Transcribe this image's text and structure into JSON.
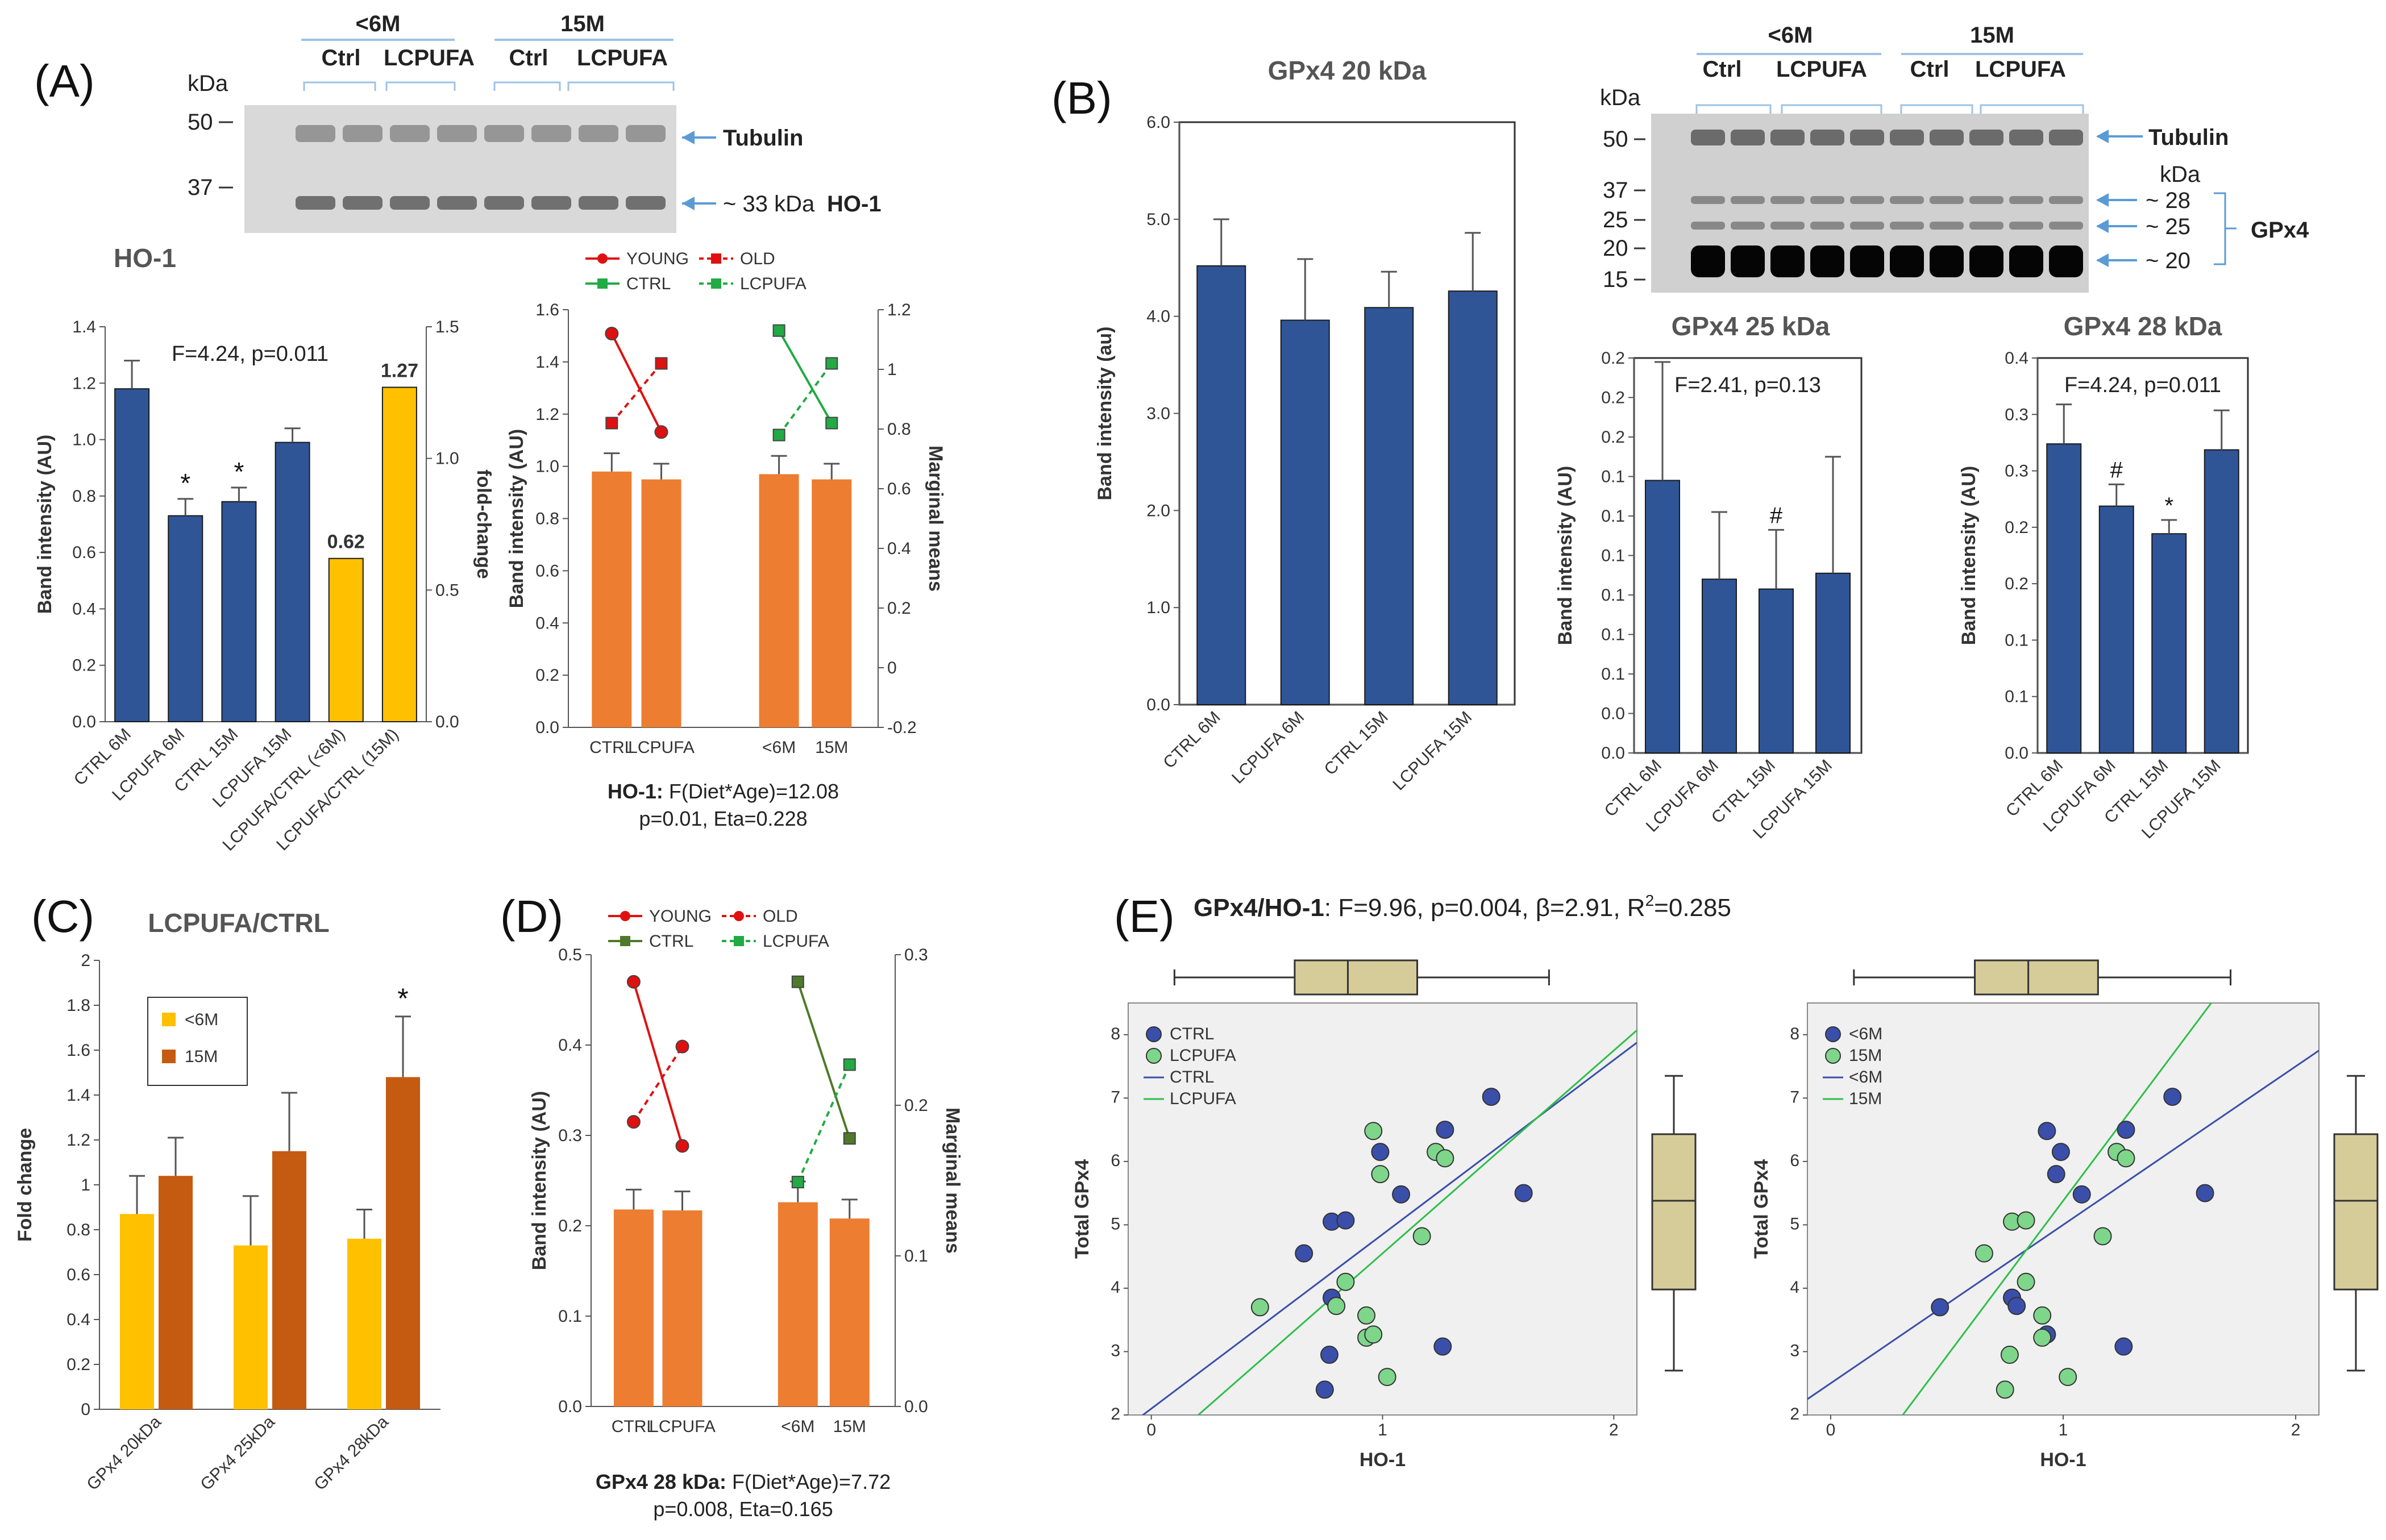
{
  "panels": {
    "A": {
      "label": "(A)",
      "blot": {
        "groups": [
          "<6M",
          "15M"
        ],
        "conds": [
          "Ctrl",
          "LCPUFA",
          "Ctrl",
          "LCPUFA"
        ],
        "unit": "kDa",
        "markers": [
          "50",
          "37"
        ],
        "bands": [
          "Tubulin",
          "~ 33 kDa",
          "HO-1"
        ]
      }
    },
    "B": {
      "label": "(B)",
      "blot": {
        "groups": [
          "<6M",
          "15M"
        ],
        "conds": [
          "Ctrl",
          "LCPUFA",
          "Ctrl",
          "LCPUFA"
        ],
        "unit": "kDa",
        "markers": [
          "50",
          "37",
          "25",
          "20",
          "15"
        ],
        "bands": [
          "Tubulin",
          "kDa",
          "~ 28",
          "~ 25",
          "~ 20",
          "GPx4"
        ]
      }
    },
    "C": {
      "label": "(C)"
    },
    "D": {
      "label": "(D)"
    },
    "E": {
      "label": "(E)",
      "header_bold": "GPx4/HO-1",
      "header_rest": ": F=9.96, p=0.004, β=2.91, R",
      "header_sup": "2",
      "header_end": "=0.285"
    }
  },
  "chart_data": [
    {
      "id": "A_bar",
      "type": "bar",
      "title": "HO-1",
      "categories": [
        "CTRL 6M",
        "LCPUFA 6M",
        "CTRL 15M",
        "LCPUFA 15M",
        "LCPUFA/CTRL (<6M)",
        "LCPUFA/CTRL (15M)"
      ],
      "values": [
        1.18,
        0.73,
        0.78,
        0.99,
        0.62,
        1.27
      ],
      "errors": [
        0.1,
        0.06,
        0.05,
        0.05,
        null,
        null
      ],
      "axis": [
        "left",
        "left",
        "left",
        "left",
        "right",
        "right"
      ],
      "colors": [
        "#2F5597",
        "#2F5597",
        "#2F5597",
        "#2F5597",
        "#FFC000",
        "#FFC000"
      ],
      "sig": [
        "",
        "*",
        "*",
        "",
        "",
        ""
      ],
      "value_labels": [
        "",
        "",
        "",
        "",
        "0.62",
        "1.27"
      ],
      "annotation": "F=4.24, p=0.011",
      "ylabel": "Band intensity (AU)",
      "y2label": "fold-change",
      "ylim": [
        0,
        1.4
      ],
      "yticks": [
        "0.0",
        "0.2",
        "0.4",
        "0.6",
        "0.8",
        "1.0",
        "1.2",
        "1.4"
      ],
      "y2lim": [
        0,
        1.5
      ],
      "y2ticks": [
        "0.0",
        "0.5",
        "1.0",
        "1.5"
      ]
    },
    {
      "id": "A_interaction",
      "type": "bar",
      "categories": [
        "CTRL",
        "LCPUFA",
        "<6M",
        "15M"
      ],
      "values": [
        0.98,
        0.95,
        0.97,
        0.95
      ],
      "errors": [
        0.07,
        0.06,
        0.07,
        0.06
      ],
      "ylabel": "Band intensity (AU)",
      "y2label": "Marginal means",
      "ylim": [
        0,
        1.6
      ],
      "yticks": [
        "0.0",
        "0.2",
        "0.4",
        "0.6",
        "0.8",
        "1.0",
        "1.2",
        "1.4",
        "1.6"
      ],
      "y2lim": [
        -0.2,
        1.2
      ],
      "y2ticks": [
        "-0.2",
        "0",
        "0.2",
        "0.4",
        "0.6",
        "0.8",
        "1",
        "1.2"
      ],
      "legend": [
        "YOUNG",
        "OLD",
        "CTRL",
        "LCPUFA"
      ],
      "lines": [
        {
          "name": "YOUNG",
          "color": "#E01010",
          "dash": false,
          "marker": "circle",
          "values": [
            1.12,
            0.79
          ]
        },
        {
          "name": "OLD",
          "color": "#E01010",
          "dash": true,
          "marker": "square",
          "values": [
            0.82,
            1.02
          ]
        },
        {
          "name": "CTRL",
          "color": "#22AA44",
          "dash": false,
          "marker": "square",
          "values": [
            1.13,
            0.82
          ]
        },
        {
          "name": "LCPUFA",
          "color": "#22AA44",
          "dash": true,
          "marker": "square",
          "values": [
            0.78,
            1.02
          ]
        }
      ],
      "caption_bold": "HO-1:",
      "caption_rest": " F(Diet*Age)=12.08",
      "caption_line2": "p=0.01,  Eta=0.228"
    },
    {
      "id": "B_20",
      "type": "bar",
      "title": "GPx4 20 kDa",
      "categories": [
        "CTRL 6M",
        "LCPUFA 6M",
        "CTRL 15M",
        "LCPUFA 15M"
      ],
      "values": [
        4.52,
        3.96,
        4.09,
        4.26
      ],
      "errors": [
        0.48,
        0.63,
        0.37,
        0.6
      ],
      "ylabel": "Band intensity (au)",
      "ylim": [
        0,
        6
      ],
      "yticks": [
        "0.0",
        "1.0",
        "2.0",
        "3.0",
        "4.0",
        "5.0",
        "6.0"
      ]
    },
    {
      "id": "B_25",
      "type": "bar",
      "title": "GPx4 25 kDa",
      "categories": [
        "CTRL 6M",
        "LCPUFA 6M",
        "CTRL 15M",
        "LCPUFA 15M"
      ],
      "values": [
        0.138,
        0.088,
        0.083,
        0.091
      ],
      "errors": [
        0.06,
        0.034,
        0.03,
        0.059
      ],
      "sig": [
        "",
        "",
        "#",
        ""
      ],
      "annotation": "F=2.41, p=0.13",
      "ylabel": "Band intensity (AU)",
      "ylim": [
        0,
        0.2
      ],
      "yticks": [
        "0.0",
        "0.0",
        "0.1",
        "0.1",
        "0.1",
        "0.1",
        "0.1",
        "0.1",
        "0.2",
        "0.2",
        "0.2"
      ]
    },
    {
      "id": "B_28",
      "type": "bar",
      "title": "GPx4 28 kDa",
      "categories": [
        "CTRL 6M",
        "LCPUFA 6M",
        "CTRL 15M",
        "LCPUFA 15M"
      ],
      "values": [
        0.313,
        0.25,
        0.222,
        0.307
      ],
      "errors": [
        0.04,
        0.022,
        0.014,
        0.04
      ],
      "sig": [
        "",
        "#",
        "*",
        ""
      ],
      "annotation": "F=4.24, p=0.011",
      "ylabel": "Band intensity (AU)",
      "ylim": [
        0,
        0.4
      ],
      "yticks": [
        "0.0",
        "0.1",
        "0.1",
        "0.2",
        "0.2",
        "0.3",
        "0.3",
        "0.4"
      ]
    },
    {
      "id": "C",
      "type": "bar",
      "title": "LCPUFA/CTRL",
      "categories": [
        "GPx4 20kDa",
        "GPx4 25kDa",
        "GPx4 28kDa"
      ],
      "series": [
        {
          "name": "<6M",
          "color": "#FFC000",
          "values": [
            0.87,
            0.73,
            0.76
          ],
          "errors": [
            0.17,
            0.22,
            0.13
          ]
        },
        {
          "name": "15M",
          "color": "#C55A11",
          "values": [
            1.04,
            1.15,
            1.48
          ],
          "errors": [
            0.17,
            0.26,
            0.27
          ]
        }
      ],
      "sig": [
        "",
        "",
        "*"
      ],
      "ylabel": "Fold change",
      "ylim": [
        0,
        2
      ],
      "yticks": [
        "0",
        "0.2",
        "0.4",
        "0.6",
        "0.8",
        "1",
        "1.2",
        "1.4",
        "1.6",
        "1.8",
        "2"
      ]
    },
    {
      "id": "D",
      "type": "bar",
      "categories": [
        "CTRL",
        "LCPUFA",
        "<6M",
        "15M"
      ],
      "values": [
        0.218,
        0.217,
        0.226,
        0.208
      ],
      "errors": [
        0.022,
        0.021,
        0.023,
        0.021
      ],
      "ylabel": "Band intensity (AU)",
      "y2label": "Marginal means",
      "ylim": [
        0,
        0.5
      ],
      "yticks": [
        "0.0",
        "0.1",
        "0.2",
        "0.3",
        "0.4",
        "0.5"
      ],
      "y2lim": [
        0,
        0.3
      ],
      "y2ticks": [
        "0.0",
        "0.1",
        "0.2",
        "0.3"
      ],
      "legend": [
        "YOUNG",
        "OLD",
        "CTRL",
        "LCPUFA"
      ],
      "lines": [
        {
          "name": "YOUNG",
          "color": "#E01010",
          "dash": false,
          "marker": "circle",
          "values": [
            0.282,
            0.173
          ]
        },
        {
          "name": "OLD",
          "color": "#E01010",
          "dash": true,
          "marker": "circle",
          "values": [
            0.189,
            0.239
          ]
        },
        {
          "name": "CTRL",
          "color": "#4E7A2A",
          "dash": false,
          "marker": "square",
          "values": [
            0.282,
            0.178
          ]
        },
        {
          "name": "LCPUFA",
          "color": "#22AA44",
          "dash": true,
          "marker": "square",
          "values": [
            0.149,
            0.227
          ]
        }
      ],
      "caption_bold": "GPx4 28 kDa:",
      "caption_rest": " F(Diet*Age)=7.72",
      "caption_line2": "p=0.008, Eta=0.165"
    },
    {
      "id": "E1",
      "type": "scatter",
      "xlabel": "HO-1",
      "ylabel": "Total GPx4",
      "xlim": [
        -0.1,
        2.1
      ],
      "ylim": [
        2,
        8.5
      ],
      "xticks": [
        "0",
        "1",
        "2"
      ],
      "yticks": [
        "2",
        "3",
        "4",
        "5",
        "6",
        "7",
        "8"
      ],
      "legend": [
        "CTRL",
        "LCPUFA",
        "CTRL",
        "LCPUFA"
      ],
      "series": [
        {
          "name": "CTRL",
          "color": "#3A4FAA",
          "points": [
            [
              0.66,
              4.55
            ],
            [
              0.78,
              5.05
            ],
            [
              0.84,
              5.07
            ],
            [
              0.99,
              6.15
            ],
            [
              1.08,
              5.48
            ],
            [
              1.27,
              6.5
            ],
            [
              1.47,
              7.02
            ],
            [
              1.61,
              5.5
            ],
            [
              0.78,
              3.85
            ],
            [
              0.77,
              2.95
            ],
            [
              0.75,
              2.4
            ],
            [
              1.26,
              3.08
            ]
          ]
        },
        {
          "name": "LCPUFA",
          "color": "#7ED68A",
          "points": [
            [
              0.47,
              3.7
            ],
            [
              0.8,
              3.72
            ],
            [
              0.84,
              4.1
            ],
            [
              0.93,
              3.57
            ],
            [
              0.93,
              3.22
            ],
            [
              0.96,
              3.27
            ],
            [
              0.96,
              6.48
            ],
            [
              0.99,
              5.8
            ],
            [
              1.02,
              2.6
            ],
            [
              1.17,
              4.82
            ],
            [
              1.23,
              6.15
            ],
            [
              1.27,
              6.05
            ]
          ]
        }
      ],
      "fits": [
        {
          "name": "CTRL",
          "color": "#3A4FAA",
          "intercept": 2.1,
          "slope": 2.75
        },
        {
          "name": "LCPUFA",
          "color": "#2EBF4A",
          "intercept": 1.35,
          "slope": 3.2
        }
      ],
      "box_x": {
        "min": 0.1,
        "q1": 0.62,
        "median": 0.85,
        "q3": 1.15,
        "max": 1.72
      },
      "box_y": {
        "min": 2.7,
        "q1": 3.98,
        "median": 5.38,
        "q3": 6.43,
        "max": 7.35
      }
    },
    {
      "id": "E2",
      "type": "scatter",
      "xlabel": "HO-1",
      "ylabel": "Total GPx4",
      "xlim": [
        -0.1,
        2.1
      ],
      "ylim": [
        2,
        8.5
      ],
      "xticks": [
        "0",
        "1",
        "2"
      ],
      "yticks": [
        "2",
        "3",
        "4",
        "5",
        "6",
        "7",
        "8"
      ],
      "legend": [
        "<6M",
        "15M",
        "<6M",
        "15M"
      ],
      "series": [
        {
          "name": "<6M",
          "color": "#3A4FAA",
          "points": [
            [
              0.47,
              3.7
            ],
            [
              0.78,
              3.85
            ],
            [
              0.8,
              3.72
            ],
            [
              0.93,
              3.27
            ],
            [
              0.93,
              6.48
            ],
            [
              0.97,
              5.8
            ],
            [
              0.99,
              6.15
            ],
            [
              1.08,
              5.48
            ],
            [
              1.26,
              3.08
            ],
            [
              1.27,
              6.5
            ],
            [
              1.47,
              7.02
            ],
            [
              1.61,
              5.5
            ]
          ]
        },
        {
          "name": "15M",
          "color": "#7ED68A",
          "points": [
            [
              0.66,
              4.55
            ],
            [
              0.75,
              2.4
            ],
            [
              0.77,
              2.95
            ],
            [
              0.78,
              5.05
            ],
            [
              0.84,
              5.07
            ],
            [
              0.84,
              4.1
            ],
            [
              0.91,
              3.57
            ],
            [
              0.91,
              3.22
            ],
            [
              1.02,
              2.6
            ],
            [
              1.17,
              4.82
            ],
            [
              1.23,
              6.15
            ],
            [
              1.27,
              6.05
            ]
          ]
        }
      ],
      "fits": [
        {
          "name": "<6M",
          "color": "#3A4FAA",
          "intercept": 2.5,
          "slope": 2.5
        },
        {
          "name": "15M",
          "color": "#2EBF4A",
          "intercept": 0.48,
          "slope": 4.9
        }
      ],
      "box_x": {
        "min": 0.1,
        "q1": 0.62,
        "median": 0.85,
        "q3": 1.15,
        "max": 1.72
      },
      "box_y": {
        "min": 2.7,
        "q1": 3.98,
        "median": 5.38,
        "q3": 6.43,
        "max": 7.35
      }
    }
  ]
}
